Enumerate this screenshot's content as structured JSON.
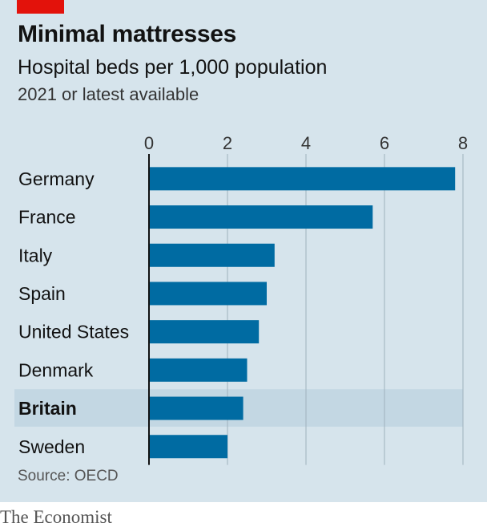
{
  "header": {
    "title": "Minimal mattresses",
    "subtitle": "Hospital beds per 1,000 population",
    "note": "2021 or latest available"
  },
  "footer": {
    "source": "Source: OECD",
    "brand": "The Economist"
  },
  "colors": {
    "bar": "#006ba2",
    "highlight_band": "#c3d7e3",
    "brand_red": "#e3120b",
    "gridline": "#9fb2bd"
  },
  "chart_data": {
    "type": "bar",
    "orientation": "horizontal",
    "title": "Minimal mattresses",
    "subtitle": "Hospital beds per 1,000 population",
    "categories": [
      "Germany",
      "France",
      "Italy",
      "Spain",
      "United States",
      "Denmark",
      "Britain",
      "Sweden"
    ],
    "values": [
      7.8,
      5.7,
      3.2,
      3.0,
      2.8,
      2.5,
      2.4,
      2.0
    ],
    "highlight": "Britain",
    "xlim": [
      0,
      8
    ],
    "xticks": [
      "0",
      "2",
      "4",
      "6",
      "8"
    ],
    "axis_position": "top",
    "grid": true
  }
}
